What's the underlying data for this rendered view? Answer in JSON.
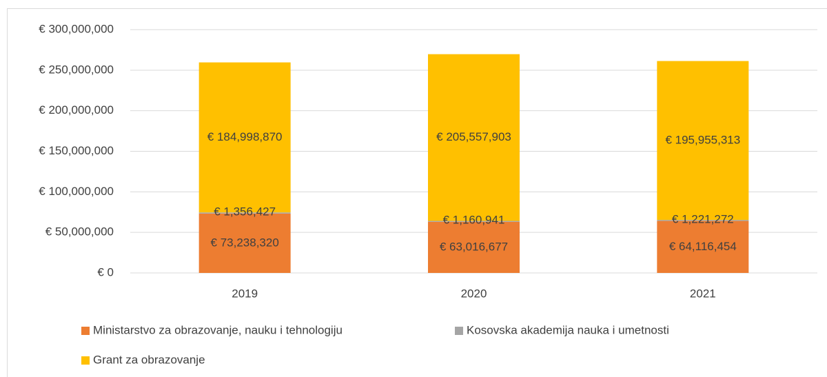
{
  "chart_data": {
    "type": "stacked_bar",
    "categories": [
      "2019",
      "2020",
      "2021"
    ],
    "series": [
      {
        "name": "Ministarstvo za obrazovanje, nauku i tehnologiju",
        "color": "#ed7d31",
        "values": [
          73238320,
          63016677,
          64116454
        ],
        "value_labels": [
          "€ 73,238,320",
          "€ 63,016,677",
          "€ 64,116,454"
        ]
      },
      {
        "name": "Kosovska akademija nauka i umetnosti",
        "color": "#a5a5a5",
        "values": [
          1356427,
          1160941,
          1221272
        ],
        "value_labels": [
          "€ 1,356,427",
          "€ 1,160,941",
          "€ 1,221,272"
        ]
      },
      {
        "name": "Grant za obrazovanje",
        "color": "#ffc000",
        "values": [
          184998870,
          205557903,
          195955313
        ],
        "value_labels": [
          "€ 184,998,870",
          "€ 205,557,903",
          "€ 195,955,313"
        ]
      }
    ],
    "ylim": [
      0,
      300000000
    ],
    "yticks": [
      {
        "value": 0,
        "label": "€ 0"
      },
      {
        "value": 50000000,
        "label": "€ 50,000,000"
      },
      {
        "value": 100000000,
        "label": "€ 100,000,000"
      },
      {
        "value": 150000000,
        "label": "€ 150,000,000"
      },
      {
        "value": 200000000,
        "label": "€ 200,000,000"
      },
      {
        "value": 250000000,
        "label": "€ 250,000,000"
      },
      {
        "value": 300000000,
        "label": "€ 300,000,000"
      }
    ],
    "grid": true
  }
}
